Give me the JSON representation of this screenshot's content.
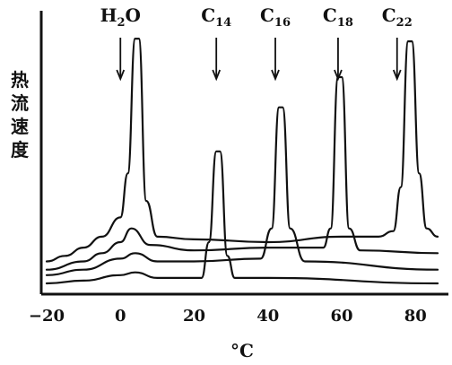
{
  "chart_data": {
    "type": "line",
    "title": "",
    "xlabel": "°C",
    "ylabel": "热流速度",
    "x_ticks": [
      "−20",
      "0",
      "20",
      "40",
      "60",
      "80"
    ],
    "x_tick_values": [
      -20,
      0,
      20,
      40,
      60,
      80
    ],
    "xlim": [
      -20,
      86
    ],
    "grid": false,
    "annotations": [
      {
        "label": "H",
        "sub": "2",
        "suffix": "O",
        "x": 0
      },
      {
        "label": "C",
        "sub": "14",
        "suffix": "",
        "x": 26
      },
      {
        "label": "C",
        "sub": "16",
        "suffix": "",
        "x": 42
      },
      {
        "label": "C",
        "sub": "18",
        "suffix": "",
        "x": 59
      },
      {
        "label": "C",
        "sub": "22",
        "suffix": "",
        "x": 75
      }
    ],
    "series": [
      {
        "points": [
          [
            -20,
            0.08
          ],
          [
            -15,
            0.1
          ],
          [
            -10,
            0.13
          ],
          [
            -5,
            0.17
          ],
          [
            0,
            0.24
          ],
          [
            2,
            0.4
          ],
          [
            4,
            0.89
          ],
          [
            5,
            0.89
          ],
          [
            7,
            0.3
          ],
          [
            10,
            0.17
          ],
          [
            20,
            0.16
          ],
          [
            40,
            0.15
          ],
          [
            60,
            0.17
          ],
          [
            70,
            0.17
          ],
          [
            74,
            0.19
          ],
          [
            76,
            0.35
          ],
          [
            78,
            0.88
          ],
          [
            79,
            0.88
          ],
          [
            81,
            0.4
          ],
          [
            83,
            0.2
          ],
          [
            86,
            0.17
          ]
        ]
      },
      {
        "points": [
          [
            -20,
            0.05
          ],
          [
            -10,
            0.08
          ],
          [
            -5,
            0.11
          ],
          [
            0,
            0.15
          ],
          [
            3,
            0.2
          ],
          [
            8,
            0.14
          ],
          [
            20,
            0.12
          ],
          [
            40,
            0.13
          ],
          [
            55,
            0.13
          ],
          [
            57,
            0.2
          ],
          [
            59,
            0.75
          ],
          [
            60,
            0.75
          ],
          [
            62,
            0.2
          ],
          [
            65,
            0.12
          ],
          [
            86,
            0.11
          ]
        ]
      },
      {
        "points": [
          [
            -20,
            0.03
          ],
          [
            -10,
            0.05
          ],
          [
            0,
            0.09
          ],
          [
            4,
            0.11
          ],
          [
            10,
            0.08
          ],
          [
            20,
            0.08
          ],
          [
            38,
            0.09
          ],
          [
            41,
            0.2
          ],
          [
            43,
            0.64
          ],
          [
            44,
            0.64
          ],
          [
            46,
            0.2
          ],
          [
            50,
            0.08
          ],
          [
            86,
            0.05
          ]
        ]
      },
      {
        "points": [
          [
            -20,
            0.0
          ],
          [
            -10,
            0.01
          ],
          [
            0,
            0.03
          ],
          [
            4,
            0.04
          ],
          [
            10,
            0.02
          ],
          [
            22,
            0.02
          ],
          [
            24,
            0.15
          ],
          [
            26,
            0.48
          ],
          [
            27,
            0.48
          ],
          [
            29,
            0.1
          ],
          [
            31,
            0.02
          ],
          [
            40,
            0.02
          ],
          [
            86,
            0.0
          ]
        ]
      }
    ]
  }
}
